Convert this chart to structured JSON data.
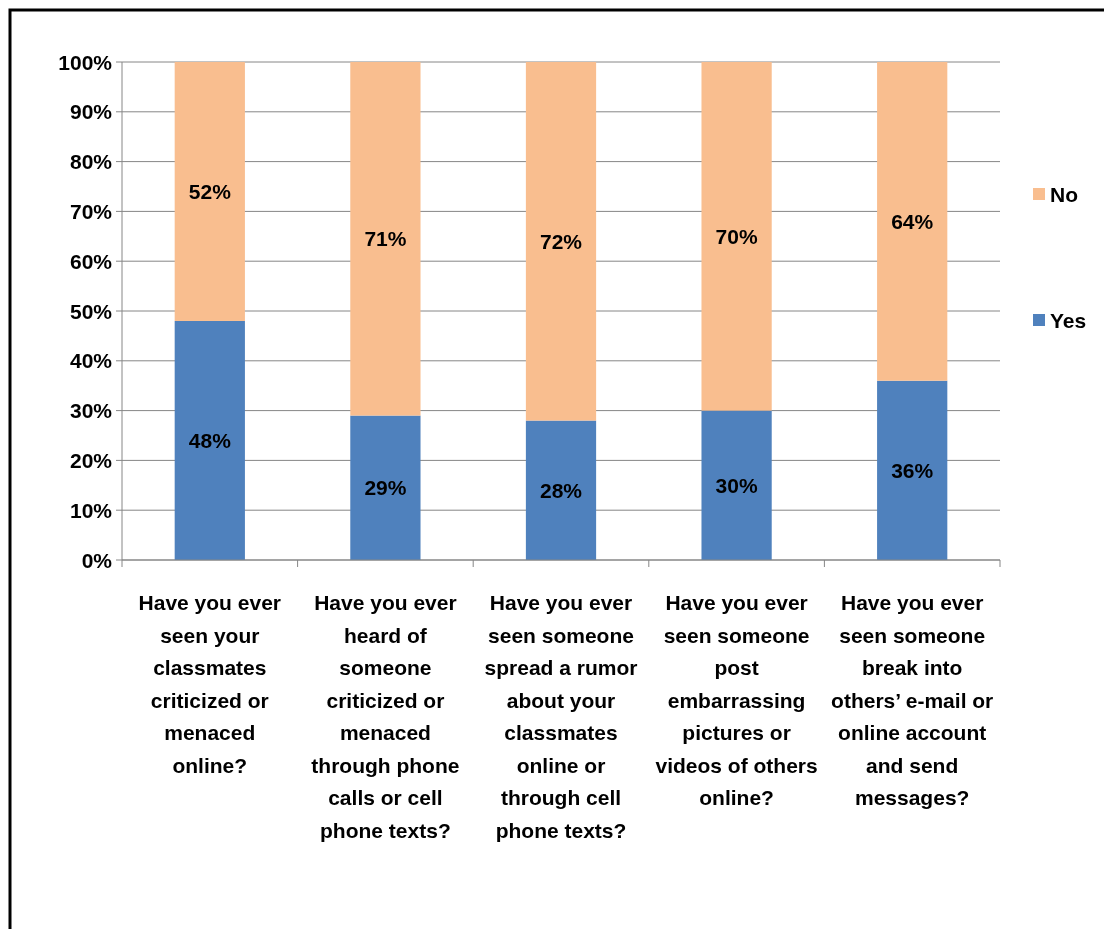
{
  "chart_data": {
    "type": "bar",
    "stacked": true,
    "categories": [
      "Have you ever seen your classmates criticized or menaced online?",
      "Have you ever heard of someone criticized or menaced through phone calls or cell phone texts?",
      "Have you ever seen someone spread a rumor about your classmates online or through cell phone texts?",
      "Have you ever seen someone post embarrassing pictures or videos of others online?",
      "Have you ever seen someone break into others’ e-mail or online account and send messages?"
    ],
    "series": [
      {
        "name": "Yes",
        "color": "#4f81bd",
        "values": [
          48,
          29,
          28,
          30,
          36
        ],
        "value_labels": [
          "48%",
          "29%",
          "28%",
          "30%",
          "36%"
        ]
      },
      {
        "name": "No",
        "color": "#f9be8f",
        "values": [
          52,
          71,
          72,
          70,
          64
        ],
        "value_labels": [
          "52%",
          "71%",
          "72%",
          "70%",
          "64%"
        ]
      }
    ],
    "ylim": [
      0,
      100
    ],
    "yticks": [
      {
        "value": 0,
        "label": "0%"
      },
      {
        "value": 10,
        "label": "10%"
      },
      {
        "value": 20,
        "label": "20%"
      },
      {
        "value": 30,
        "label": "30%"
      },
      {
        "value": 40,
        "label": "40%"
      },
      {
        "value": 50,
        "label": "50%"
      },
      {
        "value": 60,
        "label": "60%"
      },
      {
        "value": 70,
        "label": "70%"
      },
      {
        "value": 80,
        "label": "80%"
      },
      {
        "value": 90,
        "label": "90%"
      },
      {
        "value": 100,
        "label": "100%"
      }
    ],
    "grid": "y",
    "legend": "right"
  }
}
